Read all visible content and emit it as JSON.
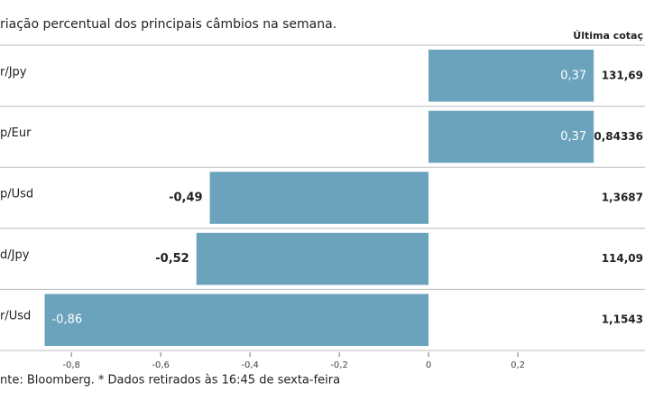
{
  "chart_data": {
    "type": "bar",
    "orientation": "horizontal",
    "title": "riação percentual dos principais câmbios na semana.",
    "quote_header": "Última cotaç",
    "categories": [
      "r/Jpy",
      "p/Eur",
      "p/Usd",
      "d/Jpy",
      "r/Usd"
    ],
    "values": [
      0.37,
      0.37,
      -0.49,
      -0.52,
      -0.86
    ],
    "value_labels": [
      "0,37",
      "0,37",
      "-0,49",
      "-0,52",
      "-0,86"
    ],
    "last_quotes": [
      "131,69",
      "0,84336",
      "1,3687",
      "114,09",
      "1,1543"
    ],
    "color": "#6ba3bd",
    "xlim": [
      -0.96,
      0.4
    ],
    "xticks": [
      {
        "value": -0.8,
        "label": "-0,8"
      },
      {
        "value": -0.6,
        "label": "-0,6"
      },
      {
        "value": -0.4,
        "label": "-0,4"
      },
      {
        "value": -0.2,
        "label": "-0,2"
      },
      0,
      {
        "value": 0.2,
        "label": "0,2"
      }
    ],
    "source": "nte: Bloomberg.  * Dados retirados às 16:45 de sexta-feira"
  }
}
